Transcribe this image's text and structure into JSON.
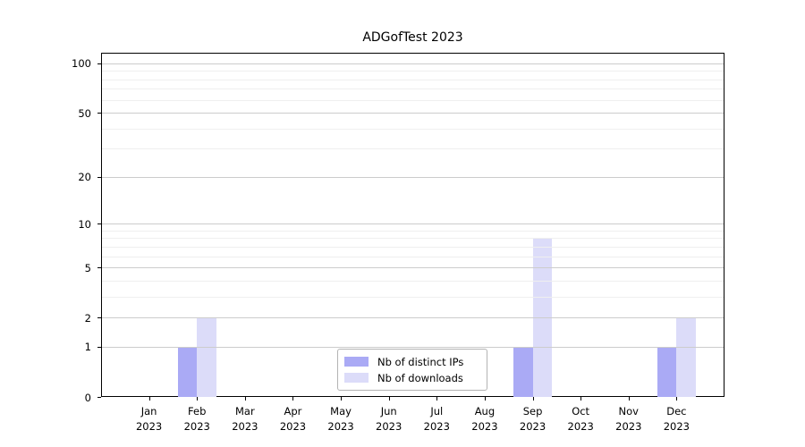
{
  "chart_data": {
    "type": "bar",
    "title": "ADGofTest 2023",
    "x_months": [
      "Jan",
      "Feb",
      "Mar",
      "Apr",
      "May",
      "Jun",
      "Jul",
      "Aug",
      "Sep",
      "Oct",
      "Nov",
      "Dec"
    ],
    "x_year": "2023",
    "series": [
      {
        "name": "Nb of distinct IPs",
        "color": "#aaaaf5",
        "values": [
          0,
          1,
          0,
          0,
          0,
          0,
          0,
          0,
          1,
          0,
          0,
          1
        ]
      },
      {
        "name": "Nb of downloads",
        "color": "#dcdcf9",
        "values": [
          0,
          2,
          0,
          0,
          0,
          0,
          0,
          0,
          8,
          0,
          0,
          2
        ]
      }
    ],
    "yscale": "log1p",
    "ylim": [
      0,
      116
    ],
    "y_major_ticks": [
      0,
      1,
      2,
      5,
      10,
      20,
      50,
      100
    ],
    "y_minor_ticks": [
      3,
      4,
      6,
      7,
      8,
      9,
      30,
      40,
      60,
      70,
      80,
      90
    ],
    "grid": "horizontal",
    "legend_position": "lower center",
    "colors": {
      "major_grid": "#cccccc",
      "minor_grid": "#efefef",
      "spine": "#000000",
      "background": "#ffffff"
    }
  }
}
